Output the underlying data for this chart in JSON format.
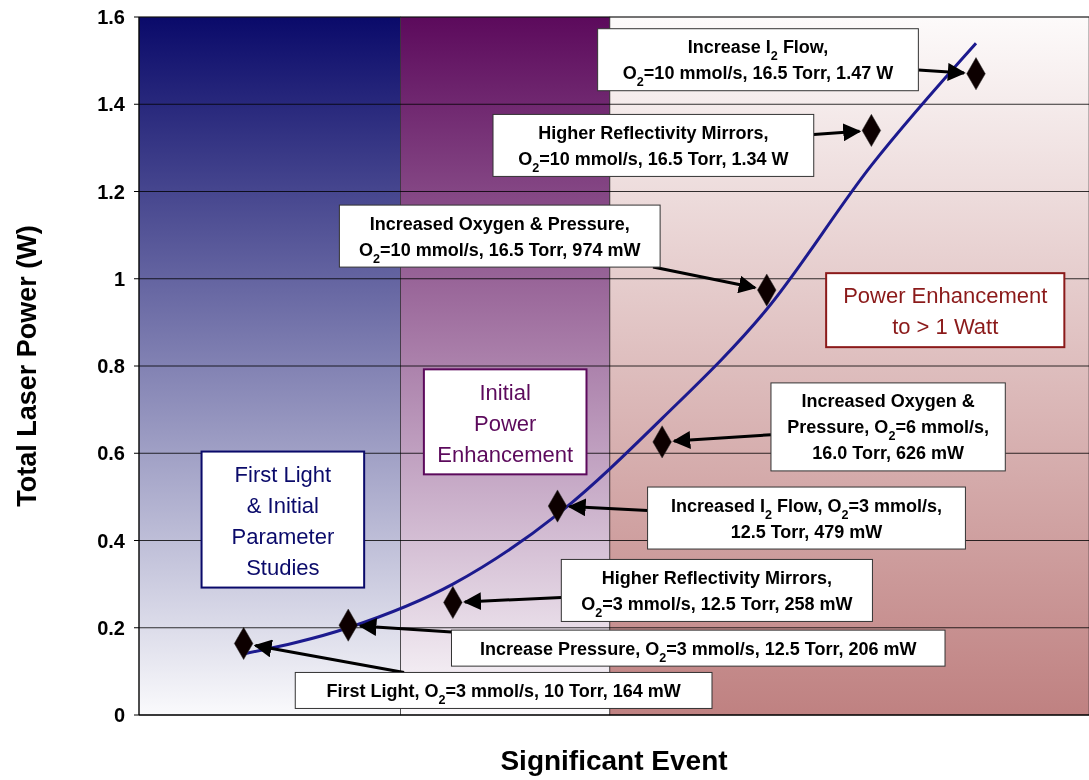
{
  "chart_data": {
    "type": "scatter",
    "xlabel": "Significant Event",
    "ylabel": "Total Laser Power (W)",
    "categories": [
      null,
      null,
      null,
      null,
      null,
      null,
      null,
      null
    ],
    "ylim": [
      0,
      1.6
    ],
    "yticks": [
      0,
      0.2,
      0.4,
      0.6,
      0.8,
      1,
      1.2,
      1.4,
      1.6
    ],
    "tick_labels": "y",
    "grid": "y",
    "series": [
      {
        "type": "line",
        "color": "#1c1a8e",
        "marker": "none",
        "line_style": "solid",
        "values": [
          0.14,
          0.2,
          0.3,
          0.46,
          0.68,
          0.93,
          1.26,
          1.54
        ]
      },
      {
        "color": "#0d0000",
        "marker": "diamond",
        "values": [
          0.164,
          0.206,
          0.258,
          0.479,
          0.626,
          0.974,
          1.34,
          1.47
        ]
      }
    ],
    "annotations": [
      "First Light, O$_{2}$=3 mmol/s, 10 Torr, 164 mW",
      "Increase Pressure, O$_{2}$=3 mmol/s, 12.5 Torr, 206 mW",
      "Higher Reflectivity Mirrors,\nO$_{2}$=3 mmol/s, 12.5 Torr, 258 mW",
      "Increased I$_{2}$ Flow, O$_{2}$=3 mmol/s,\n12.5 Torr, 479 mW",
      "Increased Oxygen &\nPressure, O$_{2}$=6 mmol/s,\n16.0 Torr, 626 mW",
      "Increased Oxygen & Pressure,\nO$_{2}$=10 mmol/s, 16.5 Torr, 974 mW",
      "Higher Reflectivity Mirrors,\nO$_{2}$=10 mmol/s, 16.5 Torr, 1.34 W",
      "Increase I$_{2}$ Flow,\nO$_{2}$=10 mmol/s, 16.5 Torr, 1.47 W",
      "First Light\n& Initial\nParameter\nStudies",
      "Initial\nPower\nEnhancement",
      "Power Enhancement\nto > 1 Watt"
    ]
  }
}
